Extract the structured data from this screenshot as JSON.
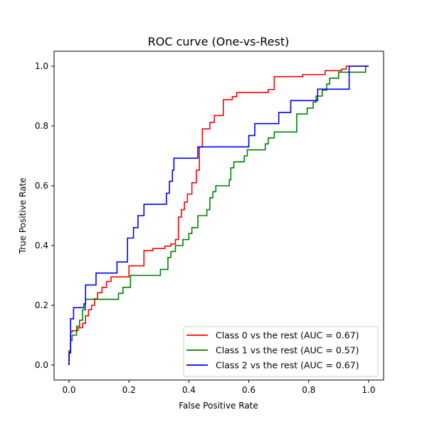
{
  "chart_data": {
    "type": "line",
    "title": "ROC curve (One-vs-Rest)",
    "xlabel": "False Positive Rate",
    "ylabel": "True Positive Rate",
    "xlim": [
      -0.05,
      1.05
    ],
    "ylim": [
      -0.05,
      1.05
    ],
    "x_ticks": [
      "0.0",
      "0.2",
      "0.4",
      "0.6",
      "0.8",
      "1.0"
    ],
    "y_ticks": [
      "0.0",
      "0.2",
      "0.4",
      "0.6",
      "0.8",
      "1.0"
    ],
    "grid": false,
    "legend_position": "lower-right",
    "series": [
      {
        "name": "Class 0 vs the rest (AUC = 0.67)",
        "color": "#ff0000",
        "points": [
          [
            0.0,
            0.0
          ],
          [
            0.0,
            0.044
          ],
          [
            0.005,
            0.044
          ],
          [
            0.005,
            0.11
          ],
          [
            0.01,
            0.11
          ],
          [
            0.01,
            0.115
          ],
          [
            0.03,
            0.115
          ],
          [
            0.03,
            0.125
          ],
          [
            0.045,
            0.125
          ],
          [
            0.045,
            0.14
          ],
          [
            0.055,
            0.14
          ],
          [
            0.055,
            0.165
          ],
          [
            0.065,
            0.165
          ],
          [
            0.065,
            0.185
          ],
          [
            0.075,
            0.185
          ],
          [
            0.075,
            0.2
          ],
          [
            0.085,
            0.2
          ],
          [
            0.085,
            0.222
          ],
          [
            0.095,
            0.222
          ],
          [
            0.095,
            0.242
          ],
          [
            0.11,
            0.242
          ],
          [
            0.11,
            0.26
          ],
          [
            0.125,
            0.26
          ],
          [
            0.125,
            0.28
          ],
          [
            0.14,
            0.28
          ],
          [
            0.14,
            0.295
          ],
          [
            0.2,
            0.295
          ],
          [
            0.2,
            0.332
          ],
          [
            0.25,
            0.332
          ],
          [
            0.25,
            0.383
          ],
          [
            0.28,
            0.383
          ],
          [
            0.28,
            0.39
          ],
          [
            0.32,
            0.39
          ],
          [
            0.32,
            0.398
          ],
          [
            0.34,
            0.398
          ],
          [
            0.34,
            0.405
          ],
          [
            0.355,
            0.405
          ],
          [
            0.355,
            0.42
          ],
          [
            0.365,
            0.42
          ],
          [
            0.365,
            0.495
          ],
          [
            0.375,
            0.495
          ],
          [
            0.375,
            0.52
          ],
          [
            0.385,
            0.52
          ],
          [
            0.385,
            0.545
          ],
          [
            0.395,
            0.545
          ],
          [
            0.395,
            0.572
          ],
          [
            0.41,
            0.572
          ],
          [
            0.41,
            0.61
          ],
          [
            0.425,
            0.61
          ],
          [
            0.425,
            0.652
          ],
          [
            0.435,
            0.652
          ],
          [
            0.435,
            0.73
          ],
          [
            0.445,
            0.73
          ],
          [
            0.445,
            0.79
          ],
          [
            0.47,
            0.79
          ],
          [
            0.47,
            0.812
          ],
          [
            0.485,
            0.812
          ],
          [
            0.485,
            0.835
          ],
          [
            0.515,
            0.835
          ],
          [
            0.515,
            0.888
          ],
          [
            0.545,
            0.888
          ],
          [
            0.545,
            0.898
          ],
          [
            0.56,
            0.898
          ],
          [
            0.56,
            0.912
          ],
          [
            0.665,
            0.912
          ],
          [
            0.665,
            0.922
          ],
          [
            0.685,
            0.922
          ],
          [
            0.685,
            0.965
          ],
          [
            0.78,
            0.965
          ],
          [
            0.78,
            0.972
          ],
          [
            0.855,
            0.972
          ],
          [
            0.855,
            0.985
          ],
          [
            0.91,
            0.985
          ],
          [
            0.91,
            0.99
          ],
          [
            0.925,
            0.99
          ],
          [
            0.925,
            1.0
          ],
          [
            1.0,
            1.0
          ]
        ]
      },
      {
        "name": "Class 1 vs the rest (AUC = 0.57)",
        "color": "#008000",
        "points": [
          [
            0.0,
            0.0
          ],
          [
            0.0,
            0.048
          ],
          [
            0.005,
            0.048
          ],
          [
            0.005,
            0.082
          ],
          [
            0.01,
            0.082
          ],
          [
            0.01,
            0.1
          ],
          [
            0.025,
            0.1
          ],
          [
            0.025,
            0.13
          ],
          [
            0.035,
            0.13
          ],
          [
            0.035,
            0.15
          ],
          [
            0.045,
            0.15
          ],
          [
            0.045,
            0.185
          ],
          [
            0.055,
            0.185
          ],
          [
            0.055,
            0.22
          ],
          [
            0.165,
            0.22
          ],
          [
            0.165,
            0.24
          ],
          [
            0.18,
            0.24
          ],
          [
            0.18,
            0.26
          ],
          [
            0.205,
            0.26
          ],
          [
            0.205,
            0.3
          ],
          [
            0.305,
            0.3
          ],
          [
            0.305,
            0.32
          ],
          [
            0.33,
            0.32
          ],
          [
            0.33,
            0.36
          ],
          [
            0.34,
            0.36
          ],
          [
            0.34,
            0.38
          ],
          [
            0.355,
            0.38
          ],
          [
            0.355,
            0.4
          ],
          [
            0.38,
            0.4
          ],
          [
            0.38,
            0.42
          ],
          [
            0.4,
            0.42
          ],
          [
            0.4,
            0.44
          ],
          [
            0.41,
            0.44
          ],
          [
            0.41,
            0.46
          ],
          [
            0.43,
            0.46
          ],
          [
            0.43,
            0.5
          ],
          [
            0.46,
            0.5
          ],
          [
            0.46,
            0.52
          ],
          [
            0.47,
            0.52
          ],
          [
            0.47,
            0.56
          ],
          [
            0.48,
            0.56
          ],
          [
            0.48,
            0.58
          ],
          [
            0.49,
            0.58
          ],
          [
            0.49,
            0.6
          ],
          [
            0.535,
            0.6
          ],
          [
            0.535,
            0.62
          ],
          [
            0.54,
            0.62
          ],
          [
            0.54,
            0.66
          ],
          [
            0.55,
            0.66
          ],
          [
            0.55,
            0.68
          ],
          [
            0.585,
            0.68
          ],
          [
            0.585,
            0.7
          ],
          [
            0.595,
            0.7
          ],
          [
            0.595,
            0.72
          ],
          [
            0.655,
            0.72
          ],
          [
            0.655,
            0.74
          ],
          [
            0.665,
            0.74
          ],
          [
            0.665,
            0.76
          ],
          [
            0.685,
            0.76
          ],
          [
            0.685,
            0.78
          ],
          [
            0.76,
            0.78
          ],
          [
            0.76,
            0.84
          ],
          [
            0.795,
            0.84
          ],
          [
            0.795,
            0.86
          ],
          [
            0.815,
            0.86
          ],
          [
            0.815,
            0.88
          ],
          [
            0.825,
            0.88
          ],
          [
            0.825,
            0.9
          ],
          [
            0.845,
            0.9
          ],
          [
            0.845,
            0.92
          ],
          [
            0.86,
            0.92
          ],
          [
            0.86,
            0.94
          ],
          [
            0.87,
            0.94
          ],
          [
            0.87,
            0.96
          ],
          [
            0.9,
            0.96
          ],
          [
            0.9,
            0.98
          ],
          [
            0.99,
            0.98
          ],
          [
            0.99,
            1.0
          ],
          [
            1.0,
            1.0
          ]
        ]
      },
      {
        "name": "Class 2 vs the rest (AUC = 0.67)",
        "color": "#0000ff",
        "points": [
          [
            0.0,
            0.0
          ],
          [
            0.0,
            0.04
          ],
          [
            0.005,
            0.04
          ],
          [
            0.005,
            0.155
          ],
          [
            0.015,
            0.155
          ],
          [
            0.015,
            0.192
          ],
          [
            0.05,
            0.192
          ],
          [
            0.05,
            0.205
          ],
          [
            0.055,
            0.205
          ],
          [
            0.055,
            0.268
          ],
          [
            0.09,
            0.268
          ],
          [
            0.09,
            0.308
          ],
          [
            0.16,
            0.308
          ],
          [
            0.16,
            0.345
          ],
          [
            0.195,
            0.345
          ],
          [
            0.195,
            0.425
          ],
          [
            0.215,
            0.425
          ],
          [
            0.215,
            0.46
          ],
          [
            0.23,
            0.46
          ],
          [
            0.23,
            0.5
          ],
          [
            0.25,
            0.5
          ],
          [
            0.25,
            0.538
          ],
          [
            0.325,
            0.538
          ],
          [
            0.325,
            0.575
          ],
          [
            0.335,
            0.575
          ],
          [
            0.335,
            0.615
          ],
          [
            0.345,
            0.615
          ],
          [
            0.345,
            0.652
          ],
          [
            0.35,
            0.652
          ],
          [
            0.35,
            0.692
          ],
          [
            0.43,
            0.692
          ],
          [
            0.43,
            0.73
          ],
          [
            0.6,
            0.73
          ],
          [
            0.6,
            0.768
          ],
          [
            0.62,
            0.768
          ],
          [
            0.62,
            0.808
          ],
          [
            0.7,
            0.808
          ],
          [
            0.7,
            0.845
          ],
          [
            0.74,
            0.845
          ],
          [
            0.74,
            0.885
          ],
          [
            0.83,
            0.885
          ],
          [
            0.83,
            0.923
          ],
          [
            0.935,
            0.923
          ],
          [
            0.935,
            1.0
          ],
          [
            1.0,
            1.0
          ]
        ]
      }
    ]
  }
}
